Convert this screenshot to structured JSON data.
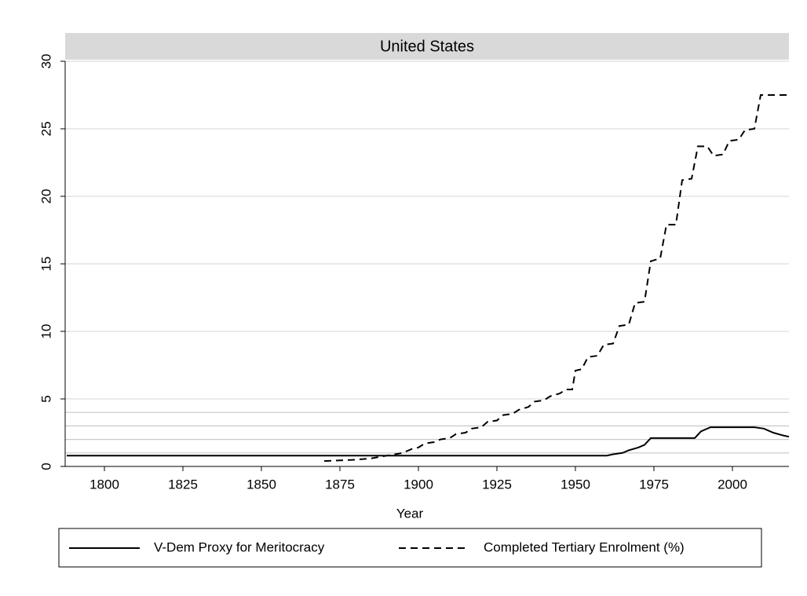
{
  "chart_data": {
    "type": "line",
    "title": "United States",
    "x_label": "Year",
    "xlim": [
      1787.5,
      2018
    ],
    "xticks": [
      1800,
      1825,
      1850,
      1875,
      1900,
      1925,
      1950,
      1975,
      2000
    ],
    "ylim": [
      0,
      30
    ],
    "yticks": [
      0,
      5,
      10,
      15,
      20,
      25,
      30
    ],
    "grid": true,
    "reference_lines": [
      1,
      2,
      3,
      4
    ],
    "legend": "bottom",
    "series": [
      {
        "name": "V-Dem Proxy for Meritocracy",
        "color": "#000000",
        "dash": "solid",
        "x": [
          1788,
          1960,
          1962,
          1965,
          1967,
          1970,
          1972,
          1974,
          1988,
          1990,
          1993,
          2007,
          2010,
          2013,
          2016,
          2018
        ],
        "values": [
          0.8,
          0.8,
          0.9,
          1.0,
          1.2,
          1.4,
          1.6,
          2.1,
          2.1,
          2.6,
          2.9,
          2.9,
          2.8,
          2.5,
          2.3,
          2.2
        ]
      },
      {
        "name": "Completed Tertiary Enrolment (%)",
        "color": "#000000",
        "dash": "dashed",
        "x": [
          1870,
          1880,
          1885,
          1890,
          1895,
          1898,
          1900,
          1902,
          1905,
          1907,
          1910,
          1912,
          1915,
          1917,
          1920,
          1922,
          1925,
          1927,
          1930,
          1932,
          1935,
          1937,
          1940,
          1942,
          1945,
          1947,
          1949,
          1950,
          1952,
          1954,
          1957,
          1959,
          1962,
          1964,
          1967,
          1969,
          1972,
          1974,
          1977,
          1979,
          1982,
          1984,
          1987,
          1989,
          1992,
          1994,
          1997,
          1999,
          2002,
          2004,
          2007,
          2009,
          2018
        ],
        "values": [
          0.4,
          0.5,
          0.6,
          0.8,
          1.0,
          1.3,
          1.4,
          1.7,
          1.8,
          2.0,
          2.1,
          2.4,
          2.5,
          2.8,
          2.9,
          3.3,
          3.4,
          3.8,
          3.9,
          4.2,
          4.4,
          4.8,
          4.9,
          5.2,
          5.4,
          5.7,
          5.7,
          7.1,
          7.2,
          8.1,
          8.2,
          9.0,
          9.1,
          10.4,
          10.5,
          12.1,
          12.2,
          15.2,
          15.4,
          17.9,
          17.9,
          21.2,
          21.3,
          23.7,
          23.7,
          23.0,
          23.1,
          24.1,
          24.2,
          24.9,
          25.0,
          27.5,
          27.5
        ]
      }
    ]
  }
}
